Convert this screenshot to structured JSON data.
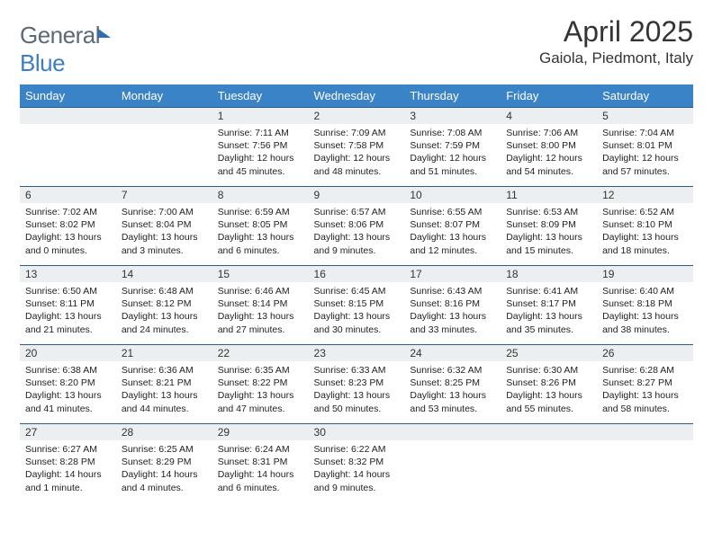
{
  "logo": {
    "text1": "General",
    "text2": "Blue"
  },
  "header": {
    "month_title": "April 2025",
    "location": "Gaiola, Piedmont, Italy"
  },
  "colors": {
    "header_bg": "#3b83c7",
    "header_text": "#ffffff",
    "row_divider": "#2a5a8a",
    "daynum_bg": "#eceff1",
    "page_bg": "#ffffff",
    "logo_gray": "#5a6a78",
    "logo_blue": "#3b7fc4"
  },
  "day_headers": [
    "Sunday",
    "Monday",
    "Tuesday",
    "Wednesday",
    "Thursday",
    "Friday",
    "Saturday"
  ],
  "weeks": [
    [
      null,
      null,
      {
        "n": "1",
        "sunrise": "Sunrise: 7:11 AM",
        "sunset": "Sunset: 7:56 PM",
        "daylight": "Daylight: 12 hours and 45 minutes."
      },
      {
        "n": "2",
        "sunrise": "Sunrise: 7:09 AM",
        "sunset": "Sunset: 7:58 PM",
        "daylight": "Daylight: 12 hours and 48 minutes."
      },
      {
        "n": "3",
        "sunrise": "Sunrise: 7:08 AM",
        "sunset": "Sunset: 7:59 PM",
        "daylight": "Daylight: 12 hours and 51 minutes."
      },
      {
        "n": "4",
        "sunrise": "Sunrise: 7:06 AM",
        "sunset": "Sunset: 8:00 PM",
        "daylight": "Daylight: 12 hours and 54 minutes."
      },
      {
        "n": "5",
        "sunrise": "Sunrise: 7:04 AM",
        "sunset": "Sunset: 8:01 PM",
        "daylight": "Daylight: 12 hours and 57 minutes."
      }
    ],
    [
      {
        "n": "6",
        "sunrise": "Sunrise: 7:02 AM",
        "sunset": "Sunset: 8:02 PM",
        "daylight": "Daylight: 13 hours and 0 minutes."
      },
      {
        "n": "7",
        "sunrise": "Sunrise: 7:00 AM",
        "sunset": "Sunset: 8:04 PM",
        "daylight": "Daylight: 13 hours and 3 minutes."
      },
      {
        "n": "8",
        "sunrise": "Sunrise: 6:59 AM",
        "sunset": "Sunset: 8:05 PM",
        "daylight": "Daylight: 13 hours and 6 minutes."
      },
      {
        "n": "9",
        "sunrise": "Sunrise: 6:57 AM",
        "sunset": "Sunset: 8:06 PM",
        "daylight": "Daylight: 13 hours and 9 minutes."
      },
      {
        "n": "10",
        "sunrise": "Sunrise: 6:55 AM",
        "sunset": "Sunset: 8:07 PM",
        "daylight": "Daylight: 13 hours and 12 minutes."
      },
      {
        "n": "11",
        "sunrise": "Sunrise: 6:53 AM",
        "sunset": "Sunset: 8:09 PM",
        "daylight": "Daylight: 13 hours and 15 minutes."
      },
      {
        "n": "12",
        "sunrise": "Sunrise: 6:52 AM",
        "sunset": "Sunset: 8:10 PM",
        "daylight": "Daylight: 13 hours and 18 minutes."
      }
    ],
    [
      {
        "n": "13",
        "sunrise": "Sunrise: 6:50 AM",
        "sunset": "Sunset: 8:11 PM",
        "daylight": "Daylight: 13 hours and 21 minutes."
      },
      {
        "n": "14",
        "sunrise": "Sunrise: 6:48 AM",
        "sunset": "Sunset: 8:12 PM",
        "daylight": "Daylight: 13 hours and 24 minutes."
      },
      {
        "n": "15",
        "sunrise": "Sunrise: 6:46 AM",
        "sunset": "Sunset: 8:14 PM",
        "daylight": "Daylight: 13 hours and 27 minutes."
      },
      {
        "n": "16",
        "sunrise": "Sunrise: 6:45 AM",
        "sunset": "Sunset: 8:15 PM",
        "daylight": "Daylight: 13 hours and 30 minutes."
      },
      {
        "n": "17",
        "sunrise": "Sunrise: 6:43 AM",
        "sunset": "Sunset: 8:16 PM",
        "daylight": "Daylight: 13 hours and 33 minutes."
      },
      {
        "n": "18",
        "sunrise": "Sunrise: 6:41 AM",
        "sunset": "Sunset: 8:17 PM",
        "daylight": "Daylight: 13 hours and 35 minutes."
      },
      {
        "n": "19",
        "sunrise": "Sunrise: 6:40 AM",
        "sunset": "Sunset: 8:18 PM",
        "daylight": "Daylight: 13 hours and 38 minutes."
      }
    ],
    [
      {
        "n": "20",
        "sunrise": "Sunrise: 6:38 AM",
        "sunset": "Sunset: 8:20 PM",
        "daylight": "Daylight: 13 hours and 41 minutes."
      },
      {
        "n": "21",
        "sunrise": "Sunrise: 6:36 AM",
        "sunset": "Sunset: 8:21 PM",
        "daylight": "Daylight: 13 hours and 44 minutes."
      },
      {
        "n": "22",
        "sunrise": "Sunrise: 6:35 AM",
        "sunset": "Sunset: 8:22 PM",
        "daylight": "Daylight: 13 hours and 47 minutes."
      },
      {
        "n": "23",
        "sunrise": "Sunrise: 6:33 AM",
        "sunset": "Sunset: 8:23 PM",
        "daylight": "Daylight: 13 hours and 50 minutes."
      },
      {
        "n": "24",
        "sunrise": "Sunrise: 6:32 AM",
        "sunset": "Sunset: 8:25 PM",
        "daylight": "Daylight: 13 hours and 53 minutes."
      },
      {
        "n": "25",
        "sunrise": "Sunrise: 6:30 AM",
        "sunset": "Sunset: 8:26 PM",
        "daylight": "Daylight: 13 hours and 55 minutes."
      },
      {
        "n": "26",
        "sunrise": "Sunrise: 6:28 AM",
        "sunset": "Sunset: 8:27 PM",
        "daylight": "Daylight: 13 hours and 58 minutes."
      }
    ],
    [
      {
        "n": "27",
        "sunrise": "Sunrise: 6:27 AM",
        "sunset": "Sunset: 8:28 PM",
        "daylight": "Daylight: 14 hours and 1 minute."
      },
      {
        "n": "28",
        "sunrise": "Sunrise: 6:25 AM",
        "sunset": "Sunset: 8:29 PM",
        "daylight": "Daylight: 14 hours and 4 minutes."
      },
      {
        "n": "29",
        "sunrise": "Sunrise: 6:24 AM",
        "sunset": "Sunset: 8:31 PM",
        "daylight": "Daylight: 14 hours and 6 minutes."
      },
      {
        "n": "30",
        "sunrise": "Sunrise: 6:22 AM",
        "sunset": "Sunset: 8:32 PM",
        "daylight": "Daylight: 14 hours and 9 minutes."
      },
      null,
      null,
      null
    ]
  ]
}
